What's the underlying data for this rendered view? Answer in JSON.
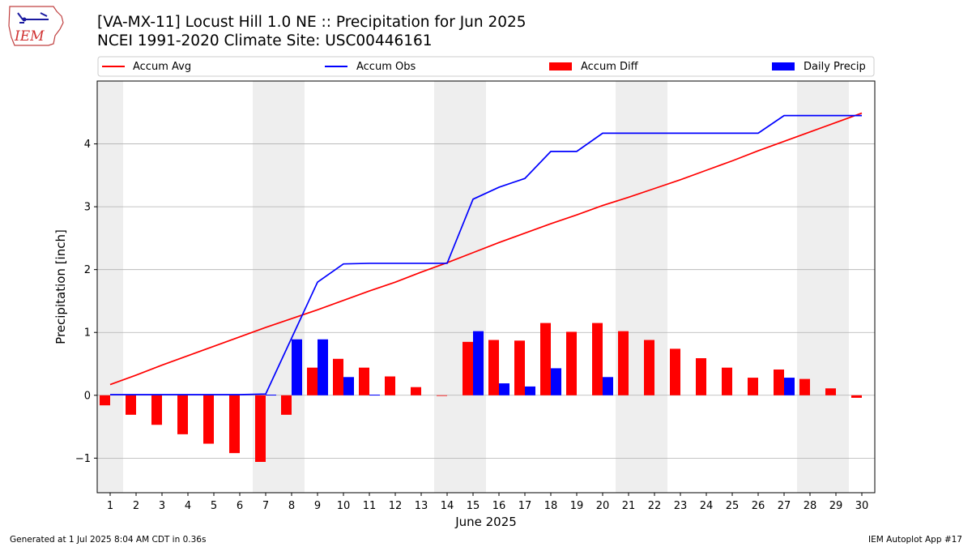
{
  "header": {
    "title_line1": "[VA-MX-11] Locust Hill 1.0 NE :: Precipitation for Jun 2025",
    "title_line2": "NCEI 1991-2020 Climate Site: USC00446161"
  },
  "logo": {
    "text": "IEM",
    "icon": "iem-state-map-logo"
  },
  "footer": {
    "left": "Generated at 1 Jul 2025 8:04 AM CDT in 0.36s",
    "right": "IEM Autoplot App #17"
  },
  "colors": {
    "avg": "#ff0000",
    "obs": "#0000ff",
    "diff": "#ff0000",
    "daily": "#0000ff",
    "weekend": "#eeeeee",
    "grid": "#b0b0b0"
  },
  "chart_data": {
    "type": "bar",
    "xlabel": "June 2025",
    "ylabel": "Precipitation [inch]",
    "ylim": [
      -1.55,
      5.0
    ],
    "yticks": [
      -1,
      0,
      1,
      2,
      3,
      4
    ],
    "xticks": [
      1,
      2,
      3,
      4,
      5,
      6,
      7,
      8,
      9,
      10,
      11,
      12,
      13,
      14,
      15,
      16,
      17,
      18,
      19,
      20,
      21,
      22,
      23,
      24,
      25,
      26,
      27,
      28,
      29,
      30
    ],
    "grid": "horizontal",
    "legend_position": "top",
    "weekend_days": [
      1,
      7,
      8,
      14,
      15,
      21,
      22,
      28,
      29
    ],
    "days": [
      1,
      2,
      3,
      4,
      5,
      6,
      7,
      8,
      9,
      10,
      11,
      12,
      13,
      14,
      15,
      16,
      17,
      18,
      19,
      20,
      21,
      22,
      23,
      24,
      25,
      26,
      27,
      28,
      29,
      30
    ],
    "series": [
      {
        "name": "Accum Avg",
        "kind": "line",
        "values": [
          0.17,
          0.32,
          0.48,
          0.63,
          0.78,
          0.93,
          1.08,
          1.22,
          1.36,
          1.51,
          1.66,
          1.8,
          1.96,
          2.11,
          2.27,
          2.43,
          2.58,
          2.73,
          2.87,
          3.02,
          3.15,
          3.29,
          3.43,
          3.58,
          3.73,
          3.89,
          4.04,
          4.19,
          4.34,
          4.49
        ]
      },
      {
        "name": "Accum Obs",
        "kind": "line",
        "values": [
          0.01,
          0.01,
          0.01,
          0.01,
          0.01,
          0.01,
          0.02,
          0.91,
          1.8,
          2.09,
          2.1,
          2.1,
          2.1,
          2.1,
          3.12,
          3.31,
          3.45,
          3.88,
          3.88,
          4.17,
          4.17,
          4.17,
          4.17,
          4.17,
          4.17,
          4.17,
          4.45,
          4.45,
          4.45,
          4.45
        ]
      },
      {
        "name": "Accum Diff",
        "kind": "bar",
        "values": [
          -0.16,
          -0.31,
          -0.47,
          -0.62,
          -0.77,
          -0.92,
          -1.06,
          -0.31,
          0.44,
          0.58,
          0.44,
          0.3,
          0.13,
          -0.01,
          0.85,
          0.88,
          0.87,
          1.15,
          1.01,
          1.15,
          1.02,
          0.88,
          0.74,
          0.59,
          0.44,
          0.28,
          0.41,
          0.26,
          0.11,
          -0.04
        ]
      },
      {
        "name": "Daily Precip",
        "kind": "bar",
        "values": [
          0,
          0,
          0,
          0,
          0,
          0,
          0.01,
          0.89,
          0.89,
          0.29,
          0.01,
          0,
          0,
          0,
          1.02,
          0.19,
          0.14,
          0.43,
          0,
          0.29,
          0,
          0,
          0,
          0,
          0,
          0,
          0.28,
          0,
          0,
          0
        ]
      }
    ]
  }
}
